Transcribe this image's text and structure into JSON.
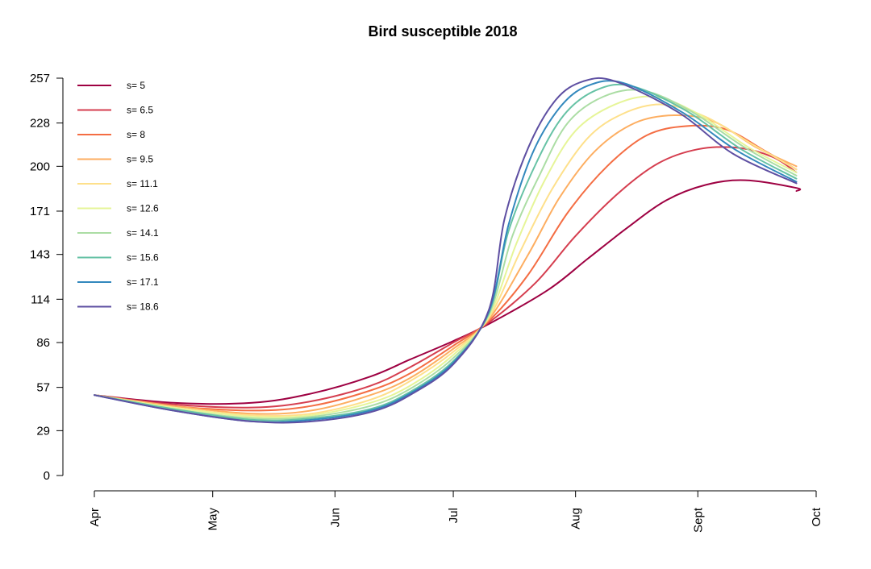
{
  "chart_data": {
    "type": "line",
    "title": "Bird susceptible 2018",
    "xlabel": "",
    "ylabel": "",
    "x_ticks": [
      {
        "label": "Apr",
        "x": 0
      },
      {
        "label": "May",
        "x": 30
      },
      {
        "label": "Jun",
        "x": 61
      },
      {
        "label": "Jul",
        "x": 91
      },
      {
        "label": "Aug",
        "x": 122
      },
      {
        "label": "Sept",
        "x": 153
      },
      {
        "label": "Oct",
        "x": 183
      }
    ],
    "y_ticks": [
      0,
      29,
      57,
      86,
      114,
      143,
      171,
      200,
      228,
      257
    ],
    "xlim": [
      0,
      183
    ],
    "ylim": [
      0,
      257
    ],
    "x_unit": "days from Apr 1",
    "grid": false,
    "legend_position": "top-left",
    "series": [
      {
        "name": "s= 5",
        "color": "#9e0142",
        "points": [
          [
            0,
            52
          ],
          [
            20,
            47
          ],
          [
            40,
            47
          ],
          [
            55,
            53
          ],
          [
            70,
            64
          ],
          [
            80,
            75
          ],
          [
            91,
            87
          ],
          [
            100,
            98
          ],
          [
            115,
            120
          ],
          [
            125,
            140
          ],
          [
            135,
            160
          ],
          [
            145,
            178
          ],
          [
            155,
            188
          ],
          [
            165,
            191
          ],
          [
            178,
            186
          ],
          [
            178,
            184
          ]
        ]
      },
      {
        "name": "s= 6.5",
        "color": "#d53e4f",
        "points": [
          [
            0,
            52
          ],
          [
            20,
            46
          ],
          [
            40,
            44
          ],
          [
            55,
            48
          ],
          [
            70,
            58
          ],
          [
            80,
            70
          ],
          [
            91,
            86
          ],
          [
            100,
            99
          ],
          [
            112,
            125
          ],
          [
            122,
            155
          ],
          [
            133,
            183
          ],
          [
            143,
            202
          ],
          [
            153,
            211
          ],
          [
            163,
            212
          ],
          [
            172,
            206
          ],
          [
            178,
            196
          ]
        ]
      },
      {
        "name": "s= 8",
        "color": "#f46d43",
        "points": [
          [
            0,
            52
          ],
          [
            20,
            45
          ],
          [
            40,
            42
          ],
          [
            55,
            45
          ],
          [
            70,
            55
          ],
          [
            80,
            66
          ],
          [
            91,
            84
          ],
          [
            100,
            100
          ],
          [
            110,
            130
          ],
          [
            120,
            170
          ],
          [
            130,
            200
          ],
          [
            140,
            220
          ],
          [
            150,
            226
          ],
          [
            160,
            224
          ],
          [
            170,
            210
          ],
          [
            178,
            198
          ]
        ]
      },
      {
        "name": "s= 9.5",
        "color": "#fdae61",
        "points": [
          [
            0,
            52
          ],
          [
            20,
            45
          ],
          [
            40,
            40
          ],
          [
            55,
            42
          ],
          [
            70,
            52
          ],
          [
            80,
            63
          ],
          [
            91,
            82
          ],
          [
            100,
            101
          ],
          [
            110,
            143
          ],
          [
            118,
            180
          ],
          [
            127,
            210
          ],
          [
            137,
            228
          ],
          [
            147,
            233
          ],
          [
            157,
            229
          ],
          [
            168,
            212
          ],
          [
            178,
            200
          ]
        ]
      },
      {
        "name": "s= 11.1",
        "color": "#fee08b",
        "points": [
          [
            0,
            52
          ],
          [
            20,
            44
          ],
          [
            40,
            39
          ],
          [
            55,
            40
          ],
          [
            70,
            49
          ],
          [
            80,
            61
          ],
          [
            91,
            80
          ],
          [
            100,
            102
          ],
          [
            108,
            145
          ],
          [
            116,
            185
          ],
          [
            125,
            218
          ],
          [
            134,
            234
          ],
          [
            144,
            240
          ],
          [
            155,
            232
          ],
          [
            167,
            214
          ],
          [
            178,
            198
          ]
        ]
      },
      {
        "name": "s= 12.6",
        "color": "#e6f598",
        "points": [
          [
            0,
            52
          ],
          [
            20,
            44
          ],
          [
            40,
            38
          ],
          [
            55,
            39
          ],
          [
            70,
            47
          ],
          [
            80,
            58
          ],
          [
            91,
            78
          ],
          [
            100,
            103
          ],
          [
            107,
            150
          ],
          [
            114,
            190
          ],
          [
            122,
            223
          ],
          [
            132,
            240
          ],
          [
            142,
            245
          ],
          [
            153,
            234
          ],
          [
            166,
            212
          ],
          [
            178,
            196
          ]
        ]
      },
      {
        "name": "s= 14.1",
        "color": "#abdda4",
        "points": [
          [
            0,
            52
          ],
          [
            20,
            43
          ],
          [
            40,
            37
          ],
          [
            55,
            38
          ],
          [
            70,
            45
          ],
          [
            80,
            56
          ],
          [
            91,
            76
          ],
          [
            100,
            104
          ],
          [
            106,
            155
          ],
          [
            113,
            195
          ],
          [
            120,
            228
          ],
          [
            129,
            245
          ],
          [
            139,
            249
          ],
          [
            151,
            236
          ],
          [
            165,
            212
          ],
          [
            178,
            194
          ]
        ]
      },
      {
        "name": "s= 15.6",
        "color": "#66c2a5",
        "points": [
          [
            0,
            52
          ],
          [
            20,
            43
          ],
          [
            40,
            36
          ],
          [
            55,
            37
          ],
          [
            70,
            43
          ],
          [
            80,
            54
          ],
          [
            91,
            74
          ],
          [
            100,
            105
          ],
          [
            105,
            158
          ],
          [
            112,
            202
          ],
          [
            119,
            233
          ],
          [
            127,
            249
          ],
          [
            136,
            252
          ],
          [
            150,
            236
          ],
          [
            164,
            211
          ],
          [
            178,
            192
          ]
        ]
      },
      {
        "name": "s= 17.1",
        "color": "#3288bd",
        "points": [
          [
            0,
            52
          ],
          [
            20,
            42
          ],
          [
            40,
            35
          ],
          [
            55,
            36
          ],
          [
            70,
            42
          ],
          [
            80,
            53
          ],
          [
            91,
            73
          ],
          [
            100,
            106
          ],
          [
            105,
            162
          ],
          [
            111,
            208
          ],
          [
            118,
            238
          ],
          [
            125,
            252
          ],
          [
            134,
            254
          ],
          [
            149,
            235
          ],
          [
            163,
            210
          ],
          [
            178,
            190
          ]
        ]
      },
      {
        "name": "s= 18.6",
        "color": "#5e4fa2",
        "points": [
          [
            0,
            52
          ],
          [
            20,
            42
          ],
          [
            40,
            35
          ],
          [
            55,
            35
          ],
          [
            70,
            41
          ],
          [
            80,
            52
          ],
          [
            91,
            72
          ],
          [
            100,
            107
          ],
          [
            104,
            166
          ],
          [
            110,
            212
          ],
          [
            117,
            243
          ],
          [
            124,
            255
          ],
          [
            132,
            255
          ],
          [
            148,
            235
          ],
          [
            162,
            208
          ],
          [
            178,
            189
          ]
        ]
      }
    ]
  }
}
